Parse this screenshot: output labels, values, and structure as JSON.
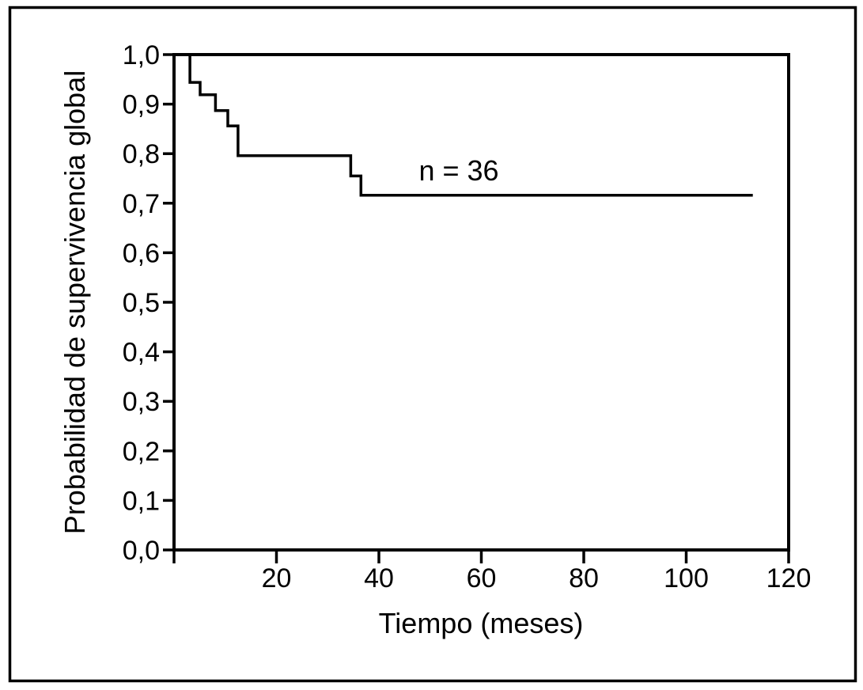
{
  "colors": {
    "line": "#000000",
    "text": "#000000",
    "background": "#ffffff",
    "border": "#000000"
  },
  "chart_data": {
    "type": "line",
    "subtype": "kaplan-meier-step-curve",
    "title": "",
    "xlabel": "Tiempo (meses)",
    "ylabel": "Probabilidad de supervivencia global",
    "xlim": [
      0,
      120
    ],
    "ylim": [
      0.0,
      1.0
    ],
    "grid": false,
    "legend": "none",
    "frame": "box",
    "x_ticks": [
      {
        "v": 0,
        "label": ""
      },
      {
        "v": 20,
        "label": "20"
      },
      {
        "v": 40,
        "label": "40"
      },
      {
        "v": 60,
        "label": "60"
      },
      {
        "v": 80,
        "label": "80"
      },
      {
        "v": 100,
        "label": "100"
      },
      {
        "v": 120,
        "label": "120"
      }
    ],
    "y_ticks": [
      {
        "v": 1.0,
        "label": "1,0"
      },
      {
        "v": 0.9,
        "label": "0,9"
      },
      {
        "v": 0.8,
        "label": "0,8"
      },
      {
        "v": 0.7,
        "label": "0,7"
      },
      {
        "v": 0.6,
        "label": "0,6"
      },
      {
        "v": 0.5,
        "label": "0,5"
      },
      {
        "v": 0.4,
        "label": "0,4"
      },
      {
        "v": 0.3,
        "label": "0,3"
      },
      {
        "v": 0.2,
        "label": "0,2"
      },
      {
        "v": 0.1,
        "label": "0,1"
      },
      {
        "v": 0.0,
        "label": "0,0"
      }
    ],
    "annotation": {
      "text": "n = 36",
      "t": 55.6,
      "s": 0.746
    },
    "series": [
      {
        "n": 36,
        "steps": [
          {
            "t": 0,
            "s": 1.0
          },
          {
            "t": 3.1,
            "s": 0.944
          },
          {
            "t": 5.1,
            "s": 0.919
          },
          {
            "t": 8.1,
            "s": 0.887
          },
          {
            "t": 10.5,
            "s": 0.856
          },
          {
            "t": 12.5,
            "s": 0.796
          },
          {
            "t": 34.5,
            "s": 0.755
          },
          {
            "t": 36.5,
            "s": 0.716
          }
        ],
        "end_t": 113
      }
    ]
  }
}
